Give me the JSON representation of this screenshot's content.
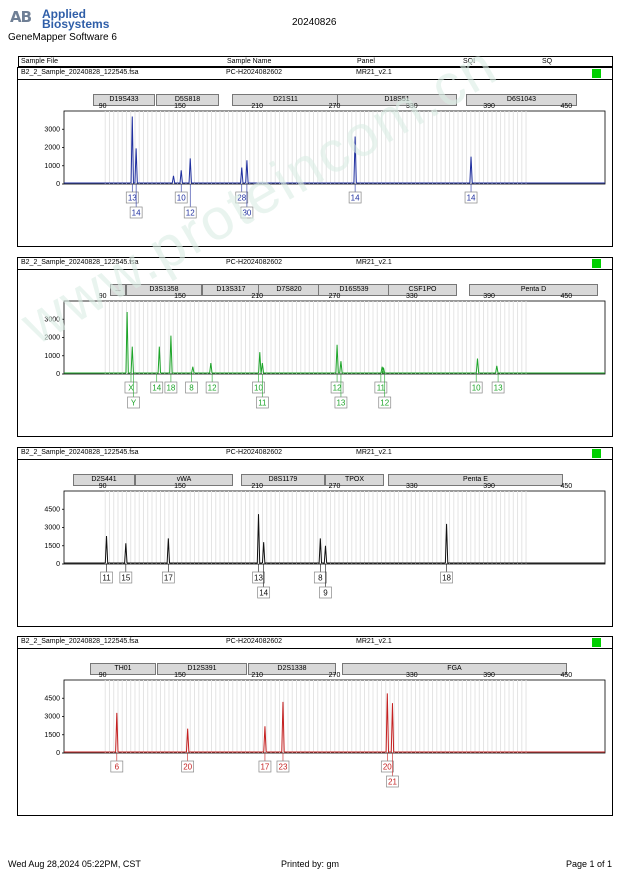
{
  "header": {
    "logo_mark": "AB",
    "logo_line1": "Applied",
    "logo_line2": "Biosystems",
    "software": "GeneMapper Software 6",
    "date_code": "20240826"
  },
  "columns": {
    "sample_file": "Sample File",
    "sample_name": "Sample Name",
    "panel": "Panel",
    "sqi": "SQI",
    "sq": "SQ"
  },
  "panels": [
    {
      "sample_file": "B2_2_Sample_20240828_122545.fsa",
      "sample_name": "PC-H2024082602",
      "panel": "MR21_v2.1",
      "color": "#1f2f9f",
      "ymax": 4000,
      "yticks": [
        0,
        1000,
        2000,
        3000
      ],
      "markers": [
        "D19S433",
        "D5S818",
        "D21S11",
        "D18S51",
        "D6S1043"
      ],
      "peaks": [
        {
          "x": 113,
          "h": 3700
        },
        {
          "x": 116,
          "h": 1950
        },
        {
          "x": 145,
          "h": 450
        },
        {
          "x": 151,
          "h": 750
        },
        {
          "x": 158,
          "h": 1400
        },
        {
          "x": 198,
          "h": 900
        },
        {
          "x": 202,
          "h": 1300
        },
        {
          "x": 286,
          "h": 2600
        },
        {
          "x": 376,
          "h": 1500
        }
      ],
      "labels": [
        {
          "x": 113,
          "level": 1,
          "text": "13"
        },
        {
          "x": 116,
          "level": 2,
          "text": "14"
        },
        {
          "x": 151,
          "level": 1,
          "text": "10"
        },
        {
          "x": 158,
          "level": 2,
          "text": "12"
        },
        {
          "x": 198,
          "level": 1,
          "text": "28"
        },
        {
          "x": 202,
          "level": 2,
          "text": "30"
        },
        {
          "x": 286,
          "level": 1,
          "text": "14"
        },
        {
          "x": 376,
          "level": 1,
          "text": "14"
        }
      ]
    },
    {
      "sample_file": "B2_2_Sample_20240828_122545.fsa",
      "sample_name": "PC-H2024082602",
      "panel": "MR21_v2.1",
      "color": "#1ea52a",
      "ymax": 4000,
      "yticks": [
        0,
        1000,
        2000,
        3000
      ],
      "markers": [
        "...",
        "D3S1358",
        "D13S317",
        "D7S820",
        "D16S539",
        "CSF1PO",
        "Penta D"
      ],
      "peaks": [
        {
          "x": 109,
          "h": 3400
        },
        {
          "x": 113,
          "h": 1500
        },
        {
          "x": 134,
          "h": 1500
        },
        {
          "x": 143,
          "h": 2100
        },
        {
          "x": 160,
          "h": 400
        },
        {
          "x": 174,
          "h": 600
        },
        {
          "x": 212,
          "h": 1200
        },
        {
          "x": 214,
          "h": 600
        },
        {
          "x": 272,
          "h": 1600
        },
        {
          "x": 275,
          "h": 700
        },
        {
          "x": 307,
          "h": 400
        },
        {
          "x": 308,
          "h": 350
        },
        {
          "x": 381,
          "h": 850
        },
        {
          "x": 396,
          "h": 450
        }
      ],
      "labels": [
        {
          "x": 112,
          "level": 1,
          "text": "X"
        },
        {
          "x": 114,
          "level": 2,
          "text": "Y"
        },
        {
          "x": 132,
          "level": 1,
          "text": "14"
        },
        {
          "x": 143,
          "level": 1,
          "text": "18"
        },
        {
          "x": 159,
          "level": 1,
          "text": "8"
        },
        {
          "x": 175,
          "level": 1,
          "text": "12"
        },
        {
          "x": 211,
          "level": 1,
          "text": "10"
        },
        {
          "x": 214,
          "level": 2,
          "text": "11"
        },
        {
          "x": 272,
          "level": 1,
          "text": "12"
        },
        {
          "x": 275,
          "level": 2,
          "text": "13"
        },
        {
          "x": 306,
          "level": 1,
          "text": "11"
        },
        {
          "x": 309,
          "level": 2,
          "text": "12"
        },
        {
          "x": 380,
          "level": 1,
          "text": "10"
        },
        {
          "x": 397,
          "level": 1,
          "text": "13"
        }
      ]
    },
    {
      "sample_file": "B2_2_Sample_20240828_122545.fsa",
      "sample_name": "PC-H2024082602",
      "panel": "MR21_v2.1",
      "color": "#111111",
      "ymax": 6000,
      "yticks": [
        0,
        1500,
        3000,
        4500
      ],
      "markers": [
        "D2S441",
        "vWA",
        "D8S1179",
        "TPOX",
        "Penta E"
      ],
      "peaks": [
        {
          "x": 93,
          "h": 2300
        },
        {
          "x": 108,
          "h": 1700
        },
        {
          "x": 141,
          "h": 2100
        },
        {
          "x": 211,
          "h": 4100
        },
        {
          "x": 215,
          "h": 1800
        },
        {
          "x": 259,
          "h": 2100
        },
        {
          "x": 263,
          "h": 1500
        },
        {
          "x": 357,
          "h": 3300
        }
      ],
      "labels": [
        {
          "x": 93,
          "level": 1,
          "text": "11"
        },
        {
          "x": 108,
          "level": 1,
          "text": "15"
        },
        {
          "x": 141,
          "level": 1,
          "text": "17"
        },
        {
          "x": 211,
          "level": 1,
          "text": "13"
        },
        {
          "x": 215,
          "level": 2,
          "text": "14"
        },
        {
          "x": 259,
          "level": 1,
          "text": "8"
        },
        {
          "x": 263,
          "level": 2,
          "text": "9"
        },
        {
          "x": 357,
          "level": 1,
          "text": "18"
        }
      ]
    },
    {
      "sample_file": "B2_2_Sample_20240828_122545.fsa",
      "sample_name": "PC-H2024082602",
      "panel": "MR21_v2.1",
      "color": "#c42020",
      "ymax": 6000,
      "yticks": [
        0,
        1500,
        3000,
        4500
      ],
      "markers": [
        "TH01",
        "D12S391",
        "D2S1338",
        "FGA"
      ],
      "peaks": [
        {
          "x": 101,
          "h": 3300
        },
        {
          "x": 156,
          "h": 2000
        },
        {
          "x": 216,
          "h": 2200
        },
        {
          "x": 230,
          "h": 4200
        },
        {
          "x": 311,
          "h": 4900
        },
        {
          "x": 315,
          "h": 4100
        }
      ],
      "labels": [
        {
          "x": 101,
          "level": 1,
          "text": "6"
        },
        {
          "x": 156,
          "level": 1,
          "text": "20"
        },
        {
          "x": 216,
          "level": 1,
          "text": "17"
        },
        {
          "x": 230,
          "level": 1,
          "text": "23"
        },
        {
          "x": 311,
          "level": 1,
          "text": "20"
        },
        {
          "x": 315,
          "level": 2,
          "text": "21"
        }
      ]
    }
  ],
  "footer": {
    "date": "Wed Aug 28,2024 05:22PM, CST",
    "printed_by": "Printed by: gm",
    "page": "Page 1 of 1"
  },
  "watermark": "www.proteincom.cn"
}
